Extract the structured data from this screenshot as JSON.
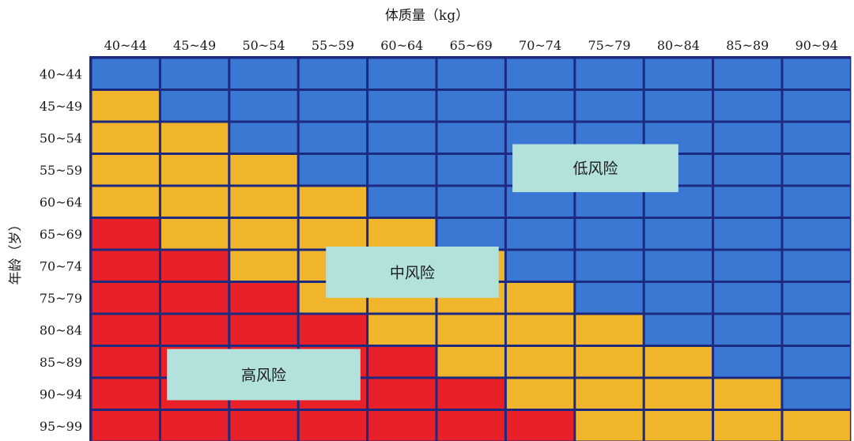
{
  "chart_data": {
    "type": "heatmap",
    "xlabel": "体质量（kg）",
    "ylabel": "年龄（岁）",
    "x_categories": [
      "40~44",
      "45~49",
      "50~54",
      "55~59",
      "60~64",
      "65~69",
      "70~74",
      "75~79",
      "80~84",
      "85~89",
      "90~94"
    ],
    "y_categories": [
      "40~44",
      "45~49",
      "50~54",
      "55~59",
      "60~64",
      "65~69",
      "70~74",
      "75~79",
      "80~84",
      "85~89",
      "90~94",
      "95~99"
    ],
    "risk_levels": [
      "低风险",
      "中风险",
      "高风险"
    ],
    "legend_colors": {
      "低风险": "#3a78d4",
      "中风险": "#f0b52a",
      "高风险": "#e8202a"
    },
    "grid_color": "#1c2a80",
    "label_box_color": "#b3e2dd",
    "risk_matrix": [
      [
        "低风险",
        "低风险",
        "低风险",
        "低风险",
        "低风险",
        "低风险",
        "低风险",
        "低风险",
        "低风险",
        "低风险",
        "低风险"
      ],
      [
        "中风险",
        "低风险",
        "低风险",
        "低风险",
        "低风险",
        "低风险",
        "低风险",
        "低风险",
        "低风险",
        "低风险",
        "低风险"
      ],
      [
        "中风险",
        "中风险",
        "低风险",
        "低风险",
        "低风险",
        "低风险",
        "低风险",
        "低风险",
        "低风险",
        "低风险",
        "低风险"
      ],
      [
        "中风险",
        "中风险",
        "中风险",
        "低风险",
        "低风险",
        "低风险",
        "低风险",
        "低风险",
        "低风险",
        "低风险",
        "低风险"
      ],
      [
        "中风险",
        "中风险",
        "中风险",
        "中风险",
        "低风险",
        "低风险",
        "低风险",
        "低风险",
        "低风险",
        "低风险",
        "低风险"
      ],
      [
        "高风险",
        "中风险",
        "中风险",
        "中风险",
        "中风险",
        "低风险",
        "低风险",
        "低风险",
        "低风险",
        "低风险",
        "低风险"
      ],
      [
        "高风险",
        "高风险",
        "中风险",
        "中风险",
        "中风险",
        "中风险",
        "低风险",
        "低风险",
        "低风险",
        "低风险",
        "低风险"
      ],
      [
        "高风险",
        "高风险",
        "高风险",
        "中风险",
        "中风险",
        "中风险",
        "中风险",
        "低风险",
        "低风险",
        "低风险",
        "低风险"
      ],
      [
        "高风险",
        "高风险",
        "高风险",
        "高风险",
        "中风险",
        "中风险",
        "中风险",
        "中风险",
        "低风险",
        "低风险",
        "低风险"
      ],
      [
        "高风险",
        "高风险",
        "高风险",
        "高风险",
        "高风险",
        "中风险",
        "中风险",
        "中风险",
        "中风险",
        "低风险",
        "低风险"
      ],
      [
        "高风险",
        "高风险",
        "高风险",
        "高风险",
        "高风险",
        "高风险",
        "中风险",
        "中风险",
        "中风险",
        "中风险",
        "低风险"
      ],
      [
        "高风险",
        "高风险",
        "高风险",
        "高风险",
        "高风险",
        "高风险",
        "高风险",
        "中风险",
        "中风险",
        "中风险",
        "中风险"
      ]
    ],
    "annotations": [
      {
        "text": "低风险",
        "col_span": [
          6.1,
          8.5
        ],
        "row_span": [
          2.7,
          4.2
        ]
      },
      {
        "text": "中风险",
        "col_span": [
          3.4,
          5.9
        ],
        "row_span": [
          5.9,
          7.5
        ]
      },
      {
        "text": "高风险",
        "col_span": [
          1.1,
          3.9
        ],
        "row_span": [
          9.1,
          10.7
        ]
      }
    ]
  }
}
